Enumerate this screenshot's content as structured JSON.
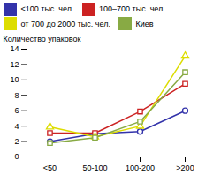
{
  "chart_data": {
    "type": "line",
    "categories": [
      "<50",
      "50-100",
      "100-200",
      ">200"
    ],
    "series": [
      {
        "name": "<100 тыс. чел.",
        "color": "#3333aa",
        "marker": "circle",
        "line_style": "solid",
        "values": [
          2.0,
          3.0,
          3.3,
          6.0
        ]
      },
      {
        "name": "100–700 тыс. чел.",
        "color": "#cc2222",
        "marker": "square",
        "line_style": "solid",
        "values": [
          3.1,
          3.1,
          5.9,
          9.5
        ]
      },
      {
        "name": "от 700 до 2000 тыс. чел.",
        "color": "#dddd00",
        "marker": "triangle",
        "line_style": "solid",
        "values": [
          3.9,
          2.6,
          4.0,
          13.1
        ]
      },
      {
        "name": "Киев",
        "color": "#88aa44",
        "marker": "square",
        "line_style": "solid",
        "values": [
          1.8,
          2.5,
          4.6,
          11.0
        ]
      }
    ],
    "ylabel": "Количество упаковок",
    "ylim": [
      0,
      14
    ],
    "yticks": [
      0,
      2,
      4,
      6,
      8,
      10,
      12,
      14
    ],
    "grid": false,
    "legend": "top"
  }
}
